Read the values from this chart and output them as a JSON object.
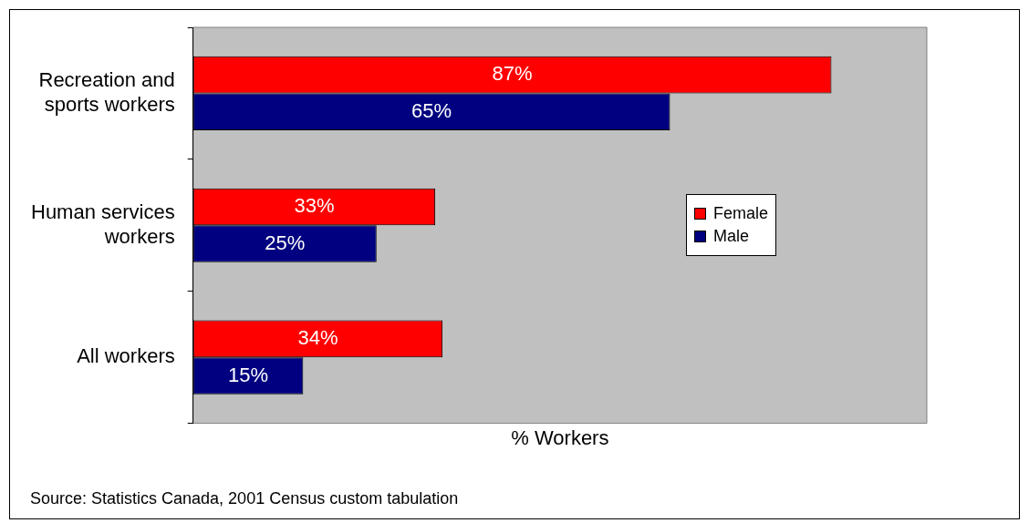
{
  "chart_data": {
    "type": "bar",
    "orientation": "horizontal",
    "xlabel": "% Workers",
    "categories": [
      "Recreation and sports workers",
      "Human services workers",
      "All workers"
    ],
    "series": [
      {
        "name": "Female",
        "color": "#ff0000",
        "values": [
          87,
          33,
          34
        ],
        "value_labels": [
          "87%",
          "33%",
          "34%"
        ]
      },
      {
        "name": "Male",
        "color": "#000080",
        "values": [
          65,
          25,
          15
        ],
        "value_labels": [
          "65%",
          "25%",
          "15%"
        ]
      }
    ],
    "xlim": [
      0,
      100
    ],
    "grid": false,
    "legend": "right",
    "tick_labels": "y",
    "annotations": [
      "Source: Statistics Canada, 2001 Census custom tabulation"
    ]
  }
}
